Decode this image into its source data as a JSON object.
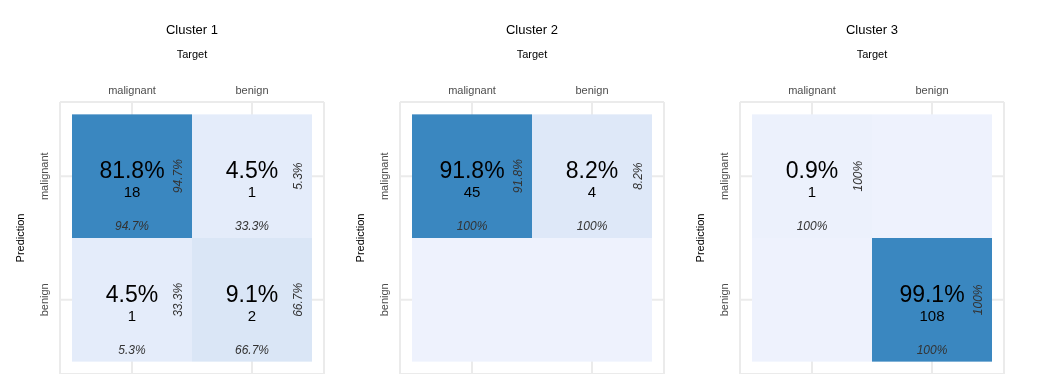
{
  "chart_data": [
    {
      "type": "heatmap",
      "title": "Cluster 1",
      "xlabel": "Target",
      "ylabel": "Prediction",
      "categories": [
        "malignant",
        "benign"
      ],
      "y_categories": [
        "malignant",
        "benign"
      ],
      "grid": true,
      "data_labels": true,
      "cells": [
        [
          18,
          1
        ],
        [
          1,
          2
        ]
      ],
      "annotations": [
        "81.8%",
        "94.7%",
        "94.7%",
        "4.5%",
        "33.3%",
        "5.3%",
        "4.5%",
        "5.3%",
        "33.3%",
        "9.1%",
        "66.7%",
        "66.7%"
      ]
    },
    {
      "type": "heatmap",
      "title": "Cluster 2",
      "xlabel": "Target",
      "ylabel": "Prediction",
      "categories": [
        "malignant",
        "benign"
      ],
      "y_categories": [
        "malignant",
        "benign"
      ],
      "grid": true,
      "data_labels": true,
      "cells": [
        [
          45,
          4
        ],
        [
          null,
          null
        ]
      ],
      "annotations": [
        "91.8%",
        "100%",
        "91.8%",
        "8.2%",
        "100%",
        "8.2%"
      ]
    },
    {
      "type": "heatmap",
      "title": "Cluster 3",
      "xlabel": "Target",
      "ylabel": "Prediction",
      "categories": [
        "malignant",
        "benign"
      ],
      "y_categories": [
        "malignant",
        "benign"
      ],
      "grid": true,
      "data_labels": true,
      "cells": [
        [
          1,
          null
        ],
        [
          null,
          108
        ]
      ],
      "annotations": [
        "0.9%",
        "100%",
        "100%",
        "99.1%",
        "100%",
        "100%"
      ]
    }
  ]
}
